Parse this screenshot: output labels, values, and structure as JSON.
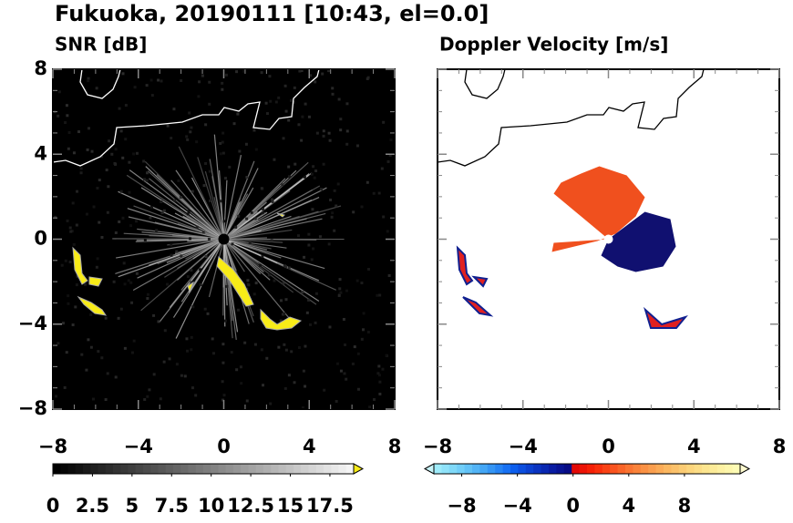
{
  "title": "Fukuoka, 20190111 [10:43, el=0.0]",
  "chart_data": [
    {
      "type": "heatmap",
      "title": "SNR [dB]",
      "xlim": [
        -8,
        8
      ],
      "ylim": [
        -8,
        8
      ],
      "xticks": [
        {
          "value": -8,
          "label": "−8"
        },
        {
          "value": -4,
          "label": "−4"
        },
        0,
        4,
        8
      ],
      "yticks": [
        {
          "value": -8,
          "label": "−8"
        },
        {
          "value": -4,
          "label": "−4"
        },
        0,
        4,
        8
      ],
      "colorbar": {
        "lim": [
          0,
          19
        ],
        "ticks": [
          0,
          2.5,
          5,
          7.5,
          10,
          12.5,
          15,
          17.5
        ]
      }
    },
    {
      "type": "heatmap",
      "title": "Doppler Velocity [m/s]",
      "xlim": [
        -8,
        8
      ],
      "ylim": [
        -8,
        8
      ],
      "xticks": [
        {
          "value": -8,
          "label": "−8"
        },
        {
          "value": -4,
          "label": "−4"
        },
        0,
        4,
        8
      ],
      "yticks": [
        -8,
        -4,
        0,
        4,
        8
      ],
      "colorbar": {
        "lim": [
          -10,
          12
        ],
        "ticks": [
          {
            "value": -8,
            "label": "−8"
          },
          {
            "value": -4,
            "label": "−4"
          },
          0,
          4,
          8
        ]
      }
    }
  ]
}
